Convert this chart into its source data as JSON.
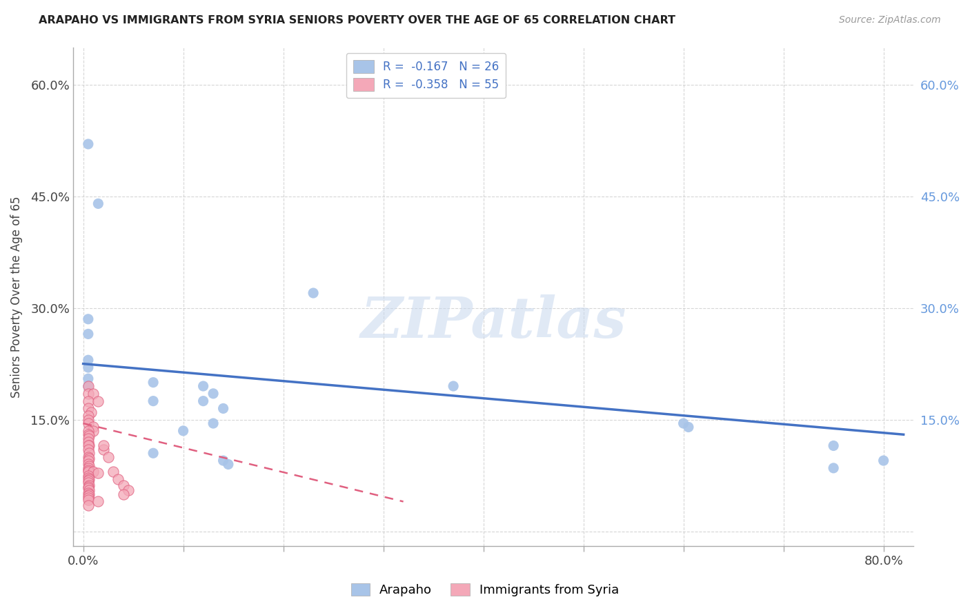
{
  "title": "ARAPAHO VS IMMIGRANTS FROM SYRIA SENIORS POVERTY OVER THE AGE OF 65 CORRELATION CHART",
  "source": "Source: ZipAtlas.com",
  "ylabel": "Seniors Poverty Over the Age of 65",
  "xlim": [
    -0.01,
    0.83
  ],
  "ylim": [
    -0.02,
    0.65
  ],
  "xticks": [
    0.0,
    0.1,
    0.2,
    0.3,
    0.4,
    0.5,
    0.6,
    0.7,
    0.8
  ],
  "yticks": [
    0.0,
    0.15,
    0.3,
    0.45,
    0.6
  ],
  "arapaho_color": "#a8c4e8",
  "syria_color": "#f4a8b8",
  "trendline_arapaho_color": "#4472c4",
  "trendline_syria_color": "#e06080",
  "legend_R_arapaho": "-0.167",
  "legend_N_arapaho": "26",
  "legend_R_syria": "-0.358",
  "legend_N_syria": "55",
  "watermark": "ZIPatlas",
  "trendline_a_x0": 0.0,
  "trendline_a_x1": 0.82,
  "trendline_a_y0": 0.225,
  "trendline_a_y1": 0.13,
  "trendline_s_x0": 0.0,
  "trendline_s_x1": 0.32,
  "trendline_s_y0": 0.145,
  "trendline_s_y1": 0.04,
  "arapaho_points": [
    [
      0.005,
      0.52
    ],
    [
      0.015,
      0.44
    ],
    [
      0.005,
      0.285
    ],
    [
      0.005,
      0.265
    ],
    [
      0.005,
      0.23
    ],
    [
      0.005,
      0.22
    ],
    [
      0.23,
      0.32
    ],
    [
      0.005,
      0.205
    ],
    [
      0.005,
      0.195
    ],
    [
      0.07,
      0.2
    ],
    [
      0.12,
      0.195
    ],
    [
      0.13,
      0.185
    ],
    [
      0.07,
      0.175
    ],
    [
      0.12,
      0.175
    ],
    [
      0.14,
      0.165
    ],
    [
      0.13,
      0.145
    ],
    [
      0.1,
      0.135
    ],
    [
      0.07,
      0.105
    ],
    [
      0.14,
      0.095
    ],
    [
      0.145,
      0.09
    ],
    [
      0.6,
      0.145
    ],
    [
      0.605,
      0.14
    ],
    [
      0.37,
      0.195
    ],
    [
      0.75,
      0.115
    ],
    [
      0.8,
      0.095
    ],
    [
      0.75,
      0.085
    ]
  ],
  "syria_points": [
    [
      0.005,
      0.195
    ],
    [
      0.005,
      0.185
    ],
    [
      0.01,
      0.185
    ],
    [
      0.005,
      0.175
    ],
    [
      0.015,
      0.175
    ],
    [
      0.005,
      0.165
    ],
    [
      0.008,
      0.16
    ],
    [
      0.005,
      0.155
    ],
    [
      0.005,
      0.15
    ],
    [
      0.005,
      0.145
    ],
    [
      0.01,
      0.14
    ],
    [
      0.01,
      0.135
    ],
    [
      0.005,
      0.135
    ],
    [
      0.005,
      0.13
    ],
    [
      0.006,
      0.128
    ],
    [
      0.005,
      0.125
    ],
    [
      0.005,
      0.12
    ],
    [
      0.006,
      0.115
    ],
    [
      0.005,
      0.115
    ],
    [
      0.005,
      0.11
    ],
    [
      0.006,
      0.105
    ],
    [
      0.005,
      0.1
    ],
    [
      0.006,
      0.098
    ],
    [
      0.005,
      0.095
    ],
    [
      0.005,
      0.09
    ],
    [
      0.006,
      0.088
    ],
    [
      0.005,
      0.085
    ],
    [
      0.005,
      0.082
    ],
    [
      0.005,
      0.08
    ],
    [
      0.01,
      0.08
    ],
    [
      0.015,
      0.078
    ],
    [
      0.005,
      0.075
    ],
    [
      0.005,
      0.072
    ],
    [
      0.006,
      0.07
    ],
    [
      0.005,
      0.068
    ],
    [
      0.005,
      0.065
    ],
    [
      0.006,
      0.062
    ],
    [
      0.005,
      0.06
    ],
    [
      0.005,
      0.058
    ],
    [
      0.006,
      0.055
    ],
    [
      0.005,
      0.052
    ],
    [
      0.006,
      0.05
    ],
    [
      0.005,
      0.048
    ],
    [
      0.005,
      0.045
    ],
    [
      0.005,
      0.042
    ],
    [
      0.015,
      0.04
    ],
    [
      0.02,
      0.11
    ],
    [
      0.025,
      0.1
    ],
    [
      0.02,
      0.115
    ],
    [
      0.03,
      0.08
    ],
    [
      0.035,
      0.07
    ],
    [
      0.04,
      0.062
    ],
    [
      0.045,
      0.055
    ],
    [
      0.04,
      0.05
    ],
    [
      0.005,
      0.035
    ]
  ]
}
